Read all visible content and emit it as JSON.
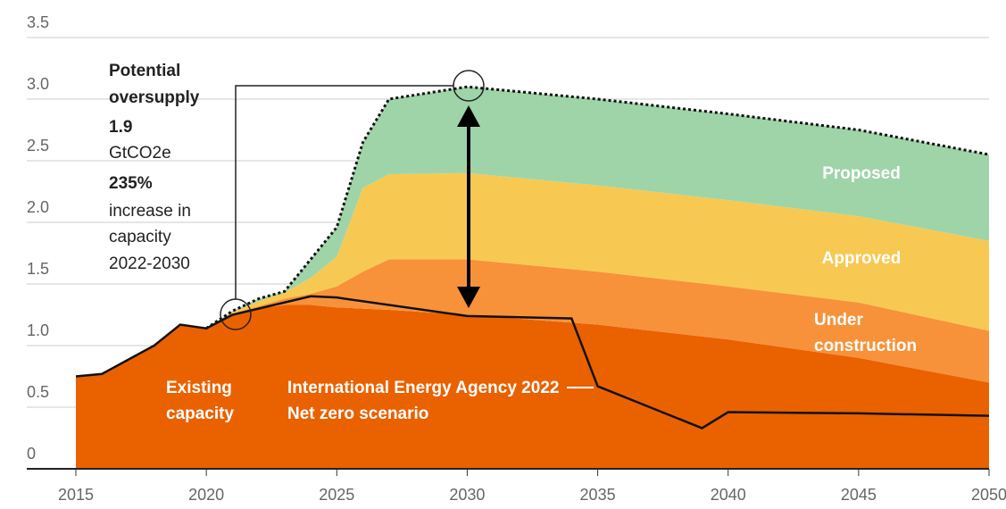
{
  "chart_data": {
    "type": "stacked_area",
    "x": [
      2015,
      2016,
      2017,
      2018,
      2019,
      2020,
      2021,
      2022,
      2023,
      2024,
      2025,
      2026,
      2027,
      2030,
      2035,
      2040,
      2045,
      2050
    ],
    "series": [
      {
        "name": "Existing capacity",
        "color": "#ea6100",
        "values": [
          0.75,
          0.77,
          0.88,
          1.0,
          1.17,
          1.14,
          1.25,
          1.3,
          1.33,
          1.33,
          1.31,
          1.3,
          1.29,
          1.25,
          1.17,
          1.05,
          0.9,
          0.7
        ]
      },
      {
        "name": "Under construction",
        "color": "#f7923a",
        "values": [
          0,
          0,
          0,
          0,
          0,
          0,
          0.01,
          0.02,
          0.05,
          0.09,
          0.17,
          0.3,
          0.41,
          0.45,
          0.43,
          0.43,
          0.45,
          0.42
        ]
      },
      {
        "name": "Approved",
        "color": "#f7c952",
        "values": [
          0,
          0,
          0,
          0,
          0,
          0,
          0.01,
          0.04,
          0.05,
          0.13,
          0.24,
          0.68,
          0.69,
          0.7,
          0.7,
          0.7,
          0.7,
          0.73
        ]
      },
      {
        "name": "Proposed",
        "color": "#9fd4a9",
        "values": [
          0,
          0,
          0,
          0,
          0,
          0,
          0.01,
          0.02,
          0.01,
          0.15,
          0.24,
          0.37,
          0.61,
          0.7,
          0.7,
          0.7,
          0.7,
          0.7
        ]
      }
    ],
    "reference_line": {
      "name": "International Energy Agency 2022 Net zero scenario",
      "color": "#111",
      "x": [
        2015,
        2016,
        2018,
        2019,
        2020,
        2021,
        2022,
        2024,
        2025,
        2030,
        2034,
        2035,
        2039,
        2040,
        2045,
        2050
      ],
      "values": [
        0.75,
        0.77,
        1.0,
        1.17,
        1.14,
        1.25,
        1.3,
        1.4,
        1.39,
        1.24,
        1.22,
        0.67,
        0.33,
        0.46,
        0.45,
        0.43
      ]
    },
    "annotation": {
      "title": [
        "Potential",
        "oversupply"
      ],
      "amount": "1.9",
      "unit": "GtCO2e",
      "percent": "235%",
      "text": [
        "increase in",
        "capacity",
        "2022-2030"
      ]
    },
    "xlim": [
      2015,
      2050
    ],
    "xticks": [
      2015,
      2020,
      2025,
      2030,
      2035,
      2040,
      2045,
      2050
    ],
    "ylim": [
      0,
      3.5
    ],
    "yticks": [
      0,
      0.5,
      {
        "value": 1,
        "label": "1.0"
      },
      1.5,
      {
        "value": 2,
        "label": "2.0"
      },
      2.5,
      {
        "value": 3,
        "label": "3.0"
      },
      3.5
    ],
    "grid": true
  }
}
